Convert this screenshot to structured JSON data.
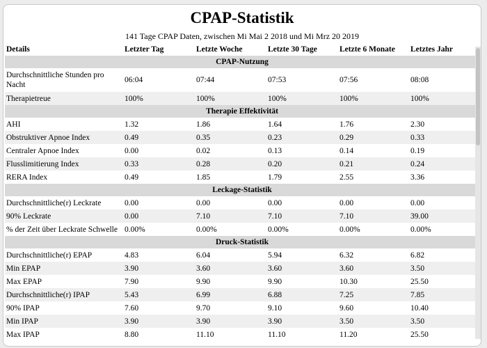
{
  "title": "CPAP-Statistik",
  "subtitle": "141 Tage CPAP Daten, zwischen Mi Mai 2 2018 und Mi Mrz 20 2019",
  "headers": [
    "Details",
    "Letzter Tag",
    "Letzte Woche",
    "Letzte 30 Tage",
    "Letzte 6 Monate",
    "Letztes Jahr"
  ],
  "sections": [
    {
      "title": "CPAP-Nutzung",
      "rows": [
        {
          "label": "Durchschnittliche Stunden pro Nacht",
          "values": [
            "06:04",
            "07:44",
            "07:53",
            "07:56",
            "08:08"
          ]
        },
        {
          "label": "Therapietreue",
          "values": [
            "100%",
            "100%",
            "100%",
            "100%",
            "100%"
          ]
        }
      ]
    },
    {
      "title": "Therapie Effektivität",
      "rows": [
        {
          "label": "AHI",
          "values": [
            "1.32",
            "1.86",
            "1.64",
            "1.76",
            "2.30"
          ]
        },
        {
          "label": "Obstruktiver Apnoe Index",
          "values": [
            "0.49",
            "0.35",
            "0.23",
            "0.29",
            "0.33"
          ]
        },
        {
          "label": "Centraler Apnoe Index",
          "values": [
            "0.00",
            "0.02",
            "0.13",
            "0.14",
            "0.19"
          ]
        },
        {
          "label": "Flusslimitierung Index",
          "values": [
            "0.33",
            "0.28",
            "0.20",
            "0.21",
            "0.24"
          ]
        },
        {
          "label": "RERA Index",
          "values": [
            "0.49",
            "1.85",
            "1.79",
            "2.55",
            "3.36"
          ]
        }
      ]
    },
    {
      "title": "Leckage-Statistik",
      "rows": [
        {
          "label": "Durchschnittliche(r) Leckrate",
          "values": [
            "0.00",
            "0.00",
            "0.00",
            "0.00",
            "0.00"
          ]
        },
        {
          "label": "90% Leckrate",
          "values": [
            "0.00",
            "7.10",
            "7.10",
            "7.10",
            "39.00"
          ]
        },
        {
          "label": "% der Zeit über Leckrate Schwelle",
          "values": [
            "0.00%",
            "0.00%",
            "0.00%",
            "0.00%",
            "0.00%"
          ]
        }
      ]
    },
    {
      "title": "Druck-Statistik",
      "rows": [
        {
          "label": "Durchschnittliche(r) EPAP",
          "values": [
            "4.83",
            "6.04",
            "5.94",
            "6.32",
            "6.82"
          ]
        },
        {
          "label": "Min EPAP",
          "values": [
            "3.90",
            "3.60",
            "3.60",
            "3.60",
            "3.50"
          ]
        },
        {
          "label": "Max EPAP",
          "values": [
            "7.90",
            "9.90",
            "9.90",
            "10.30",
            "25.50"
          ]
        },
        {
          "label": "Durchschnittliche(r) IPAP",
          "values": [
            "5.43",
            "6.99",
            "6.88",
            "7.25",
            "7.85"
          ]
        },
        {
          "label": "90% IPAP",
          "values": [
            "7.60",
            "9.70",
            "9.10",
            "9.60",
            "10.40"
          ]
        },
        {
          "label": "Min IPAP",
          "values": [
            "3.90",
            "3.90",
            "3.90",
            "3.50",
            "3.50"
          ]
        },
        {
          "label": "Max IPAP",
          "values": [
            "8.80",
            "11.10",
            "11.10",
            "11.20",
            "25.50"
          ]
        }
      ]
    }
  ]
}
